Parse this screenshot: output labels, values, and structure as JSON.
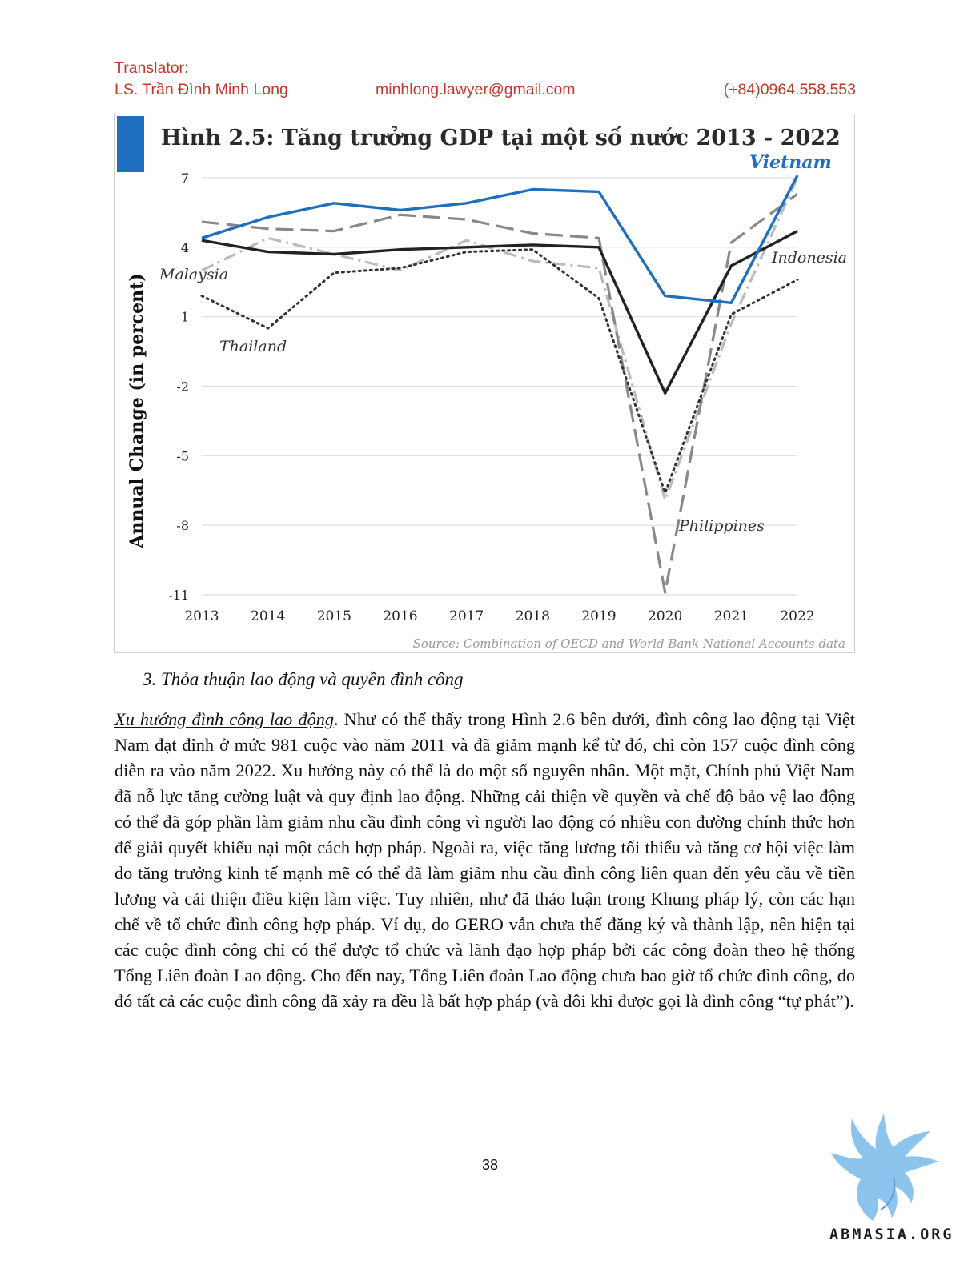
{
  "header": {
    "label": "Translator:",
    "name": "LS. Trần Đình Minh Long",
    "email": "minhlong.lawyer@gmail.com",
    "phone": "(+84)0964.558.553",
    "color": "#c0392b"
  },
  "figure": {
    "title": "Hình 2.5: Tăng trưởng GDP tại một số nước 2013 - 2022",
    "source": "Source: Combination of OECD and World Bank National Accounts data",
    "accent_color": "#1f6fc1"
  },
  "chart_data": {
    "type": "line",
    "title": "Hình 2.5: Tăng trưởng GDP tại một số nước 2013 - 2022",
    "ylabel": "Annual Change (in percent)",
    "xlabel": "",
    "x": [
      "2013",
      "2014",
      "2015",
      "2016",
      "2017",
      "2018",
      "2019",
      "2020",
      "2021",
      "2022"
    ],
    "yticks": [
      "7",
      "4",
      "1",
      "-2",
      "-5",
      "-8",
      "-11"
    ],
    "ylim": [
      -11,
      7
    ],
    "grid": "horizontal",
    "legend": "inline labels",
    "series": [
      {
        "name": "Vietnam",
        "values": [
          4.4,
          5.3,
          5.9,
          5.6,
          5.9,
          6.5,
          6.4,
          1.9,
          1.6,
          7.1
        ],
        "color": "#1f6fc1",
        "style": "solid"
      },
      {
        "name": "Indonesia",
        "values": [
          4.3,
          3.8,
          3.7,
          3.9,
          4.0,
          4.1,
          4.0,
          -2.3,
          3.2,
          4.7
        ],
        "color": "#222222",
        "style": "solid"
      },
      {
        "name": "Philippines",
        "values": [
          5.1,
          4.8,
          4.7,
          5.4,
          5.2,
          4.6,
          4.4,
          -10.9,
          4.2,
          6.3
        ],
        "color": "#888888",
        "style": "dashed"
      },
      {
        "name": "Malaysia",
        "values": [
          3.0,
          4.4,
          3.7,
          3.0,
          4.3,
          3.4,
          3.1,
          -6.9,
          0.7,
          7.0
        ],
        "color": "#bbbbbb",
        "style": "dashdot"
      },
      {
        "name": "Thailand",
        "values": [
          1.9,
          0.5,
          2.9,
          3.1,
          3.8,
          3.9,
          1.8,
          -6.6,
          1.1,
          2.6
        ],
        "color": "#333333",
        "style": "dotted"
      }
    ]
  },
  "section": {
    "heading": "3.  Thỏa thuận lao động và quyền đình công"
  },
  "paragraph": {
    "lead": "Xu hướng đình công lao động",
    "body": ". Như có thể thấy trong Hình 2.6 bên dưới, đình công lao động tại Việt Nam đạt đỉnh ở mức 981 cuộc vào năm 2011 và đã giảm mạnh kể từ đó, chỉ còn 157 cuộc đình công diễn ra vào năm 2022. Xu hướng này có thể là do một số nguyên nhân. Một mặt, Chính phủ Việt Nam đã nỗ lực tăng cường luật và quy định lao động. Những cải thiện về quyền và chế độ bảo vệ lao động có thể đã góp phần làm giảm nhu cầu đình công vì người lao động có nhiều con đường chính thức hơn để giải quyết khiếu nại một cách hợp pháp. Ngoài ra, việc tăng lương tối thiểu và tăng cơ hội việc làm do tăng trưởng kinh tế mạnh mẽ có thể đã làm giảm nhu cầu đình công liên quan đến yêu cầu về tiền lương và cải thiện điều kiện làm việc. Tuy nhiên, như đã thảo luận trong Khung pháp lý, còn các hạn chế về tổ chức đình công hợp pháp. Ví dụ, do GERO vẫn chưa thể đăng ký và thành lập, nên hiện tại các cuộc đình công chỉ có thể được tổ chức và lãnh đạo hợp pháp bởi các công đoàn theo hệ thống Tổng Liên đoàn Lao động. Cho đến nay, Tổng Liên đoàn Lao động chưa bao giờ tổ chức đình công, do đó tất cả các cuộc đình công đã xảy ra đều là bất hợp pháp (và đôi khi được gọi là đình công “tự phát”)."
  },
  "page": {
    "number": "38"
  },
  "logo": {
    "text": "ABMASIA.ORG",
    "icon": "griffin-logo-icon",
    "color": "#8cc4ee"
  }
}
